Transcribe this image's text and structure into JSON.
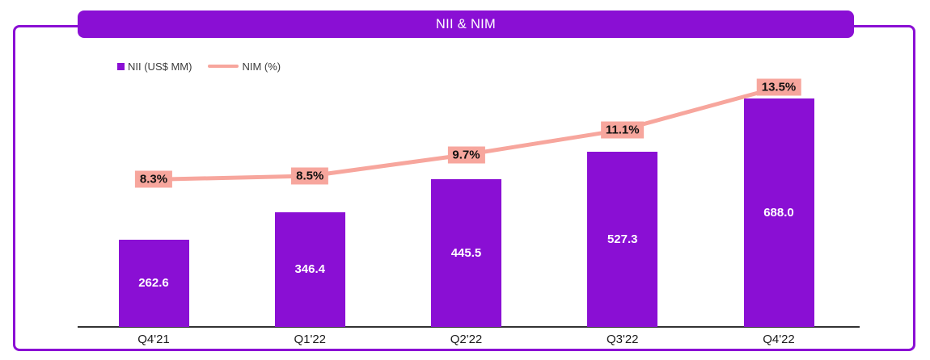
{
  "chart": {
    "title": "NII & NIM",
    "legend": {
      "nii": "NII (US$ MM)",
      "nim": "NIM (%)"
    }
  },
  "chart_data": {
    "type": "bar",
    "title": "NII & NIM",
    "xlabel": "",
    "ylabel": "",
    "categories": [
      "Q4'21",
      "Q1'22",
      "Q2'22",
      "Q3'22",
      "Q4'22"
    ],
    "series": [
      {
        "name": "NII (US$ MM)",
        "type": "bar",
        "values": [
          262.6,
          346.4,
          445.5,
          527.3,
          688.0
        ],
        "labels": [
          "262.6",
          "346.4",
          "445.5",
          "527.3",
          "688.0"
        ],
        "color": "#8A0FD4",
        "label_color": "#FFFFFF"
      },
      {
        "name": "NIM (%)",
        "type": "line",
        "values": [
          8.3,
          8.5,
          9.7,
          11.1,
          13.5
        ],
        "labels": [
          "8.3%",
          "8.5%",
          "9.7%",
          "11.1%",
          "13.5%"
        ],
        "color": "#F7A69D",
        "label_bg": "#F7A69D",
        "label_color": "#111111"
      }
    ],
    "legend_position": "top-left",
    "grid": false,
    "bar_value_labels": "inside-center",
    "line_value_labels": "on-point-badge"
  },
  "colors": {
    "accent_purple": "#8A0FD4",
    "accent_salmon": "#F7A69D",
    "axis": "#333333",
    "title_text": "#FFFFFF",
    "tick_text": "#1A1A1A"
  }
}
